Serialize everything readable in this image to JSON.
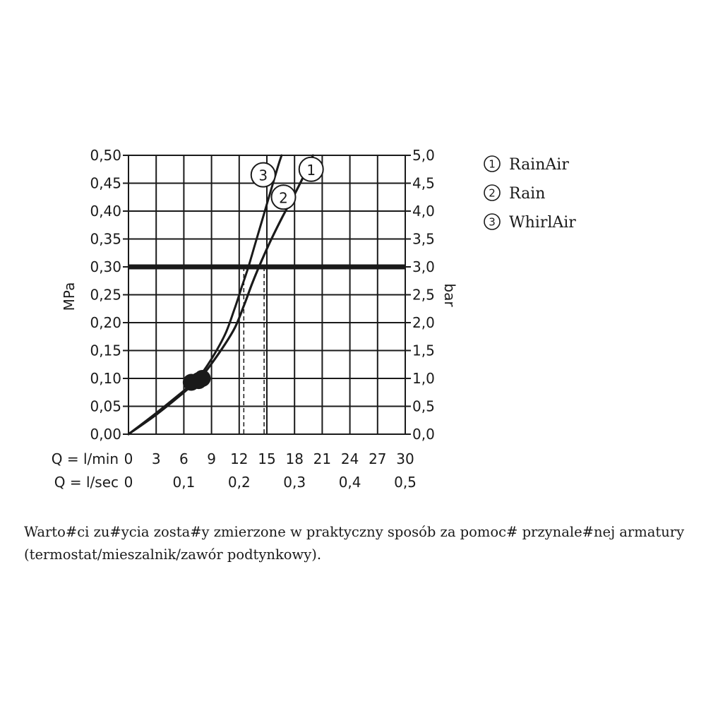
{
  "chart_data": {
    "type": "line",
    "y_left_label": "MPa",
    "y_right_label": "bar",
    "y_left_ticks": [
      "0,00",
      "0,05",
      "0,10",
      "0,15",
      "0,20",
      "0,25",
      "0,30",
      "0,35",
      "0,40",
      "0,45",
      "0,50"
    ],
    "y_right_ticks": [
      "0,0",
      "0,5",
      "1,0",
      "1,5",
      "2,0",
      "2,5",
      "3,0",
      "3,5",
      "4,0",
      "4,5",
      "5,0"
    ],
    "ylim": [
      0,
      0.5
    ],
    "xlim": [
      0,
      30
    ],
    "x_row1_label": "Q = l/min",
    "x_row1_ticks": [
      "0",
      "3",
      "6",
      "9",
      "12",
      "15",
      "18",
      "21",
      "24",
      "27",
      "30"
    ],
    "x_row2_label": "Q = l/sec",
    "x_row2_ticks": [
      {
        "text": "0",
        "x": 0
      },
      {
        "text": "0,1",
        "x": 6
      },
      {
        "text": "0,2",
        "x": 12
      },
      {
        "text": "0,3",
        "x": 18
      },
      {
        "text": "0,4",
        "x": 24
      },
      {
        "text": "0,5",
        "x": 30
      }
    ],
    "reference_line": {
      "y": 0.3
    },
    "drop_lines": [
      {
        "x": 12.5,
        "y": 0.3
      },
      {
        "x": 14.7,
        "y": 0.3
      }
    ],
    "series": [
      {
        "marker_label": "1",
        "points": [
          [
            0,
            0
          ],
          [
            3,
            0.035
          ],
          [
            6,
            0.075
          ],
          [
            8,
            0.105
          ],
          [
            10,
            0.15
          ],
          [
            11.5,
            0.19
          ],
          [
            12.5,
            0.23
          ],
          [
            13.4,
            0.27
          ],
          [
            14.4,
            0.31
          ],
          [
            15.5,
            0.35
          ],
          [
            16.7,
            0.39
          ],
          [
            18.0,
            0.43
          ],
          [
            19.2,
            0.47
          ],
          [
            20.0,
            0.5
          ]
        ]
      },
      {
        "marker_label": "2",
        "points": [
          [
            0,
            0
          ],
          [
            3,
            0.035
          ],
          [
            6,
            0.075
          ],
          [
            8,
            0.105
          ],
          [
            10,
            0.15
          ],
          [
            11.5,
            0.19
          ],
          [
            12.5,
            0.23
          ],
          [
            13.4,
            0.27
          ],
          [
            14.4,
            0.31
          ],
          [
            15.5,
            0.35
          ],
          [
            16.7,
            0.39
          ],
          [
            18.0,
            0.43
          ],
          [
            19.2,
            0.47
          ],
          [
            20.0,
            0.5
          ]
        ]
      },
      {
        "marker_label": "3",
        "points": [
          [
            0,
            0
          ],
          [
            3,
            0.038
          ],
          [
            6,
            0.078
          ],
          [
            7.5,
            0.1
          ],
          [
            9,
            0.135
          ],
          [
            10.5,
            0.18
          ],
          [
            11.5,
            0.225
          ],
          [
            12.3,
            0.265
          ],
          [
            13.0,
            0.3
          ],
          [
            13.8,
            0.345
          ],
          [
            14.6,
            0.39
          ],
          [
            15.4,
            0.435
          ],
          [
            16.2,
            0.48
          ],
          [
            16.6,
            0.5
          ]
        ]
      }
    ],
    "label_points": [
      {
        "label": "3",
        "x": 14.6,
        "y": 0.465
      },
      {
        "label": "2",
        "x": 16.8,
        "y": 0.425
      },
      {
        "label": "1",
        "x": 19.8,
        "y": 0.475
      }
    ],
    "dots": [
      {
        "x": 6.8,
        "y": 0.093
      },
      {
        "x": 7.6,
        "y": 0.096
      },
      {
        "x": 8.0,
        "y": 0.1
      }
    ],
    "legend": [
      {
        "number": "1",
        "name": "RainAir"
      },
      {
        "number": "2",
        "name": "Rain"
      },
      {
        "number": "3",
        "name": "WhirlAir"
      }
    ]
  },
  "caption": {
    "line1": "Warto#ci zu#ycia zosta#y zmierzone w praktyczny sposób za pomoc# przynale#nej armatury",
    "line2": "(termostat/mieszalnik/zawór podtynkowy)."
  }
}
